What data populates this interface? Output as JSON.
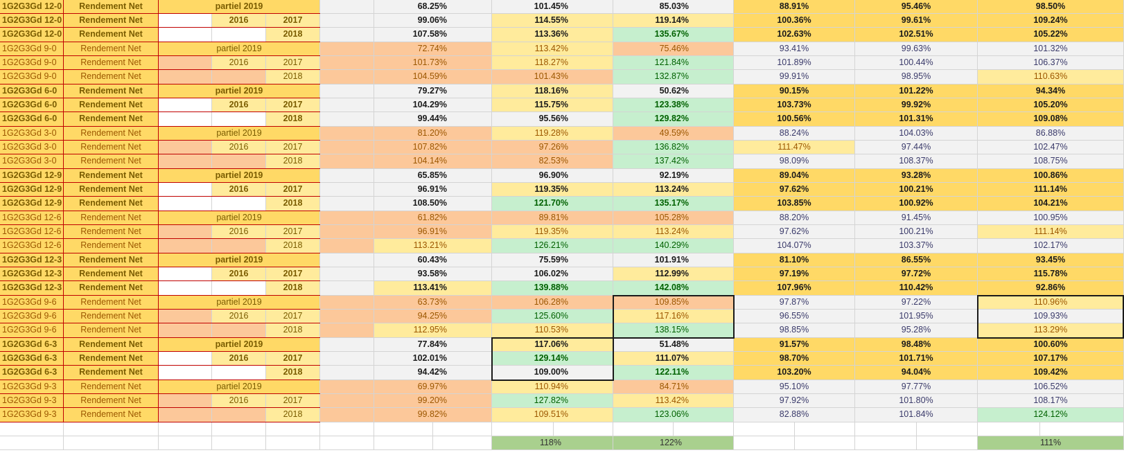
{
  "rows": [
    {
      "code": "1G2G3Gd 12-0",
      "label": "Rendement Net",
      "period": "partiel 2019",
      "y1": "",
      "y2": "",
      "vals": [
        "68.25%",
        "101.45%",
        "85.03%",
        "88.91%",
        "95.46%",
        "98.50%"
      ],
      "bg": [
        "gray",
        "gray",
        "gray",
        "gold",
        "gold",
        "gold"
      ],
      "emph": true
    },
    {
      "code": "1G2G3Gd 12-0",
      "label": "Rendement Net",
      "period": "",
      "y1": "2016",
      "y2": "2017",
      "vals": [
        "99.06%",
        "114.55%",
        "119.14%",
        "100.36%",
        "99.61%",
        "109.24%"
      ],
      "bg": [
        "gray",
        "pale",
        "pale",
        "gold",
        "gold",
        "gold"
      ],
      "emph": true
    },
    {
      "code": "1G2G3Gd 12-0",
      "label": "Rendement Net",
      "period": "",
      "y1": "",
      "y2": "2018",
      "vals": [
        "107.58%",
        "113.36%",
        "135.67%",
        "102.63%",
        "102.51%",
        "105.22%"
      ],
      "bg": [
        "gray",
        "pale",
        "green",
        "gold",
        "gold",
        "gold"
      ],
      "emph": true
    },
    {
      "code": "1G2G3Gd 9-0",
      "label": "Rendement Net",
      "period": "partiel 2019",
      "y1": "",
      "y2": "",
      "vals": [
        "72.74%",
        "113.42%",
        "75.46%",
        "93.41%",
        "99.63%",
        "101.32%"
      ],
      "bg": [
        "peach",
        "pale",
        "peach",
        "gray",
        "gray",
        "gray"
      ],
      "emph": false
    },
    {
      "code": "1G2G3Gd 9-0",
      "label": "Rendement Net",
      "period": "",
      "y1": "2016",
      "y2": "2017",
      "vals": [
        "101.73%",
        "118.27%",
        "121.84%",
        "101.89%",
        "100.44%",
        "106.37%"
      ],
      "bg": [
        "peach",
        "pale",
        "green",
        "gray",
        "gray",
        "gray"
      ],
      "emph": false
    },
    {
      "code": "1G2G3Gd 9-0",
      "label": "Rendement Net",
      "period": "",
      "y1": "",
      "y2": "2018",
      "vals": [
        "104.59%",
        "101.43%",
        "132.87%",
        "99.91%",
        "98.95%",
        "110.63%"
      ],
      "bg": [
        "peach",
        "peach",
        "green",
        "gray",
        "gray",
        "pale"
      ],
      "emph": false
    },
    {
      "code": "1G2G3Gd 6-0",
      "label": "Rendement Net",
      "period": "partiel 2019",
      "y1": "",
      "y2": "",
      "vals": [
        "79.27%",
        "118.16%",
        "50.62%",
        "90.15%",
        "101.22%",
        "94.34%"
      ],
      "bg": [
        "gray",
        "pale",
        "gray",
        "gold",
        "gold",
        "gold"
      ],
      "emph": true
    },
    {
      "code": "1G2G3Gd 6-0",
      "label": "Rendement Net",
      "period": "",
      "y1": "2016",
      "y2": "2017",
      "vals": [
        "104.29%",
        "115.75%",
        "123.38%",
        "103.73%",
        "99.92%",
        "105.20%"
      ],
      "bg": [
        "gray",
        "pale",
        "green",
        "gold",
        "gold",
        "gold"
      ],
      "emph": true
    },
    {
      "code": "1G2G3Gd 6-0",
      "label": "Rendement Net",
      "period": "",
      "y1": "",
      "y2": "2018",
      "vals": [
        "99.44%",
        "95.56%",
        "129.82%",
        "100.56%",
        "101.31%",
        "109.08%"
      ],
      "bg": [
        "gray",
        "gray",
        "green",
        "gold",
        "gold",
        "gold"
      ],
      "emph": true
    },
    {
      "code": "1G2G3Gd 3-0",
      "label": "Rendement Net",
      "period": "partiel 2019",
      "y1": "",
      "y2": "",
      "vals": [
        "81.20%",
        "119.28%",
        "49.59%",
        "88.24%",
        "104.03%",
        "86.88%"
      ],
      "bg": [
        "peach",
        "pale",
        "peach",
        "gray",
        "gray",
        "gray"
      ],
      "emph": false
    },
    {
      "code": "1G2G3Gd 3-0",
      "label": "Rendement Net",
      "period": "",
      "y1": "2016",
      "y2": "2017",
      "vals": [
        "107.82%",
        "97.26%",
        "136.82%",
        "111.47%",
        "97.44%",
        "102.47%"
      ],
      "bg": [
        "peach",
        "peach",
        "green",
        "pale",
        "gray",
        "gray"
      ],
      "emph": false
    },
    {
      "code": "1G2G3Gd 3-0",
      "label": "Rendement Net",
      "period": "",
      "y1": "",
      "y2": "2018",
      "vals": [
        "104.14%",
        "82.53%",
        "137.42%",
        "98.09%",
        "108.37%",
        "108.75%"
      ],
      "bg": [
        "peach",
        "peach",
        "green",
        "gray",
        "gray",
        "gray"
      ],
      "emph": false
    },
    {
      "code": "1G2G3Gd 12-9",
      "label": "Rendement Net",
      "period": "partiel 2019",
      "y1": "",
      "y2": "",
      "vals": [
        "65.85%",
        "96.90%",
        "92.19%",
        "89.04%",
        "93.28%",
        "100.86%"
      ],
      "bg": [
        "gray",
        "gray",
        "gray",
        "gold",
        "gold",
        "gold"
      ],
      "emph": true
    },
    {
      "code": "1G2G3Gd 12-9",
      "label": "Rendement Net",
      "period": "",
      "y1": "2016",
      "y2": "2017",
      "vals": [
        "96.91%",
        "119.35%",
        "113.24%",
        "97.62%",
        "100.21%",
        "111.14%"
      ],
      "bg": [
        "gray",
        "pale",
        "pale",
        "gold",
        "gold",
        "gold"
      ],
      "emph": true
    },
    {
      "code": "1G2G3Gd 12-9",
      "label": "Rendement Net",
      "period": "",
      "y1": "",
      "y2": "2018",
      "vals": [
        "108.50%",
        "121.70%",
        "135.17%",
        "103.85%",
        "100.92%",
        "104.21%"
      ],
      "bg": [
        "gray",
        "green",
        "green",
        "gold",
        "gold",
        "gold"
      ],
      "emph": true
    },
    {
      "code": "1G2G3Gd 12-6",
      "label": "Rendement Net",
      "period": "partiel 2019",
      "y1": "",
      "y2": "",
      "vals": [
        "61.82%",
        "89.81%",
        "105.28%",
        "88.20%",
        "91.45%",
        "100.95%"
      ],
      "bg": [
        "peach",
        "peach",
        "peach",
        "gray",
        "gray",
        "gray"
      ],
      "emph": false
    },
    {
      "code": "1G2G3Gd 12-6",
      "label": "Rendement Net",
      "period": "",
      "y1": "2016",
      "y2": "2017",
      "vals": [
        "96.91%",
        "119.35%",
        "113.24%",
        "97.62%",
        "100.21%",
        "111.14%"
      ],
      "bg": [
        "peach",
        "pale",
        "pale",
        "gray",
        "gray",
        "pale"
      ],
      "emph": false
    },
    {
      "code": "1G2G3Gd 12-6",
      "label": "Rendement Net",
      "period": "",
      "y1": "",
      "y2": "2018",
      "vals": [
        "113.21%",
        "126.21%",
        "140.29%",
        "104.07%",
        "103.37%",
        "102.17%"
      ],
      "bg": [
        "pale",
        "green",
        "green",
        "gray",
        "gray",
        "gray"
      ],
      "emph": false
    },
    {
      "code": "1G2G3Gd 12-3",
      "label": "Rendement Net",
      "period": "partiel 2019",
      "y1": "",
      "y2": "",
      "vals": [
        "60.43%",
        "75.59%",
        "101.91%",
        "81.10%",
        "86.55%",
        "93.45%"
      ],
      "bg": [
        "gray",
        "gray",
        "gray",
        "gold",
        "gold",
        "gold"
      ],
      "emph": true
    },
    {
      "code": "1G2G3Gd 12-3",
      "label": "Rendement Net",
      "period": "",
      "y1": "2016",
      "y2": "2017",
      "vals": [
        "93.58%",
        "106.02%",
        "112.99%",
        "97.19%",
        "97.72%",
        "115.78%"
      ],
      "bg": [
        "gray",
        "gray",
        "pale",
        "gold",
        "gold",
        "gold"
      ],
      "emph": true
    },
    {
      "code": "1G2G3Gd 12-3",
      "label": "Rendement Net",
      "period": "",
      "y1": "",
      "y2": "2018",
      "vals": [
        "113.41%",
        "139.88%",
        "142.08%",
        "107.96%",
        "110.42%",
        "92.86%"
      ],
      "bg": [
        "pale",
        "green",
        "green",
        "gold",
        "gold",
        "gold"
      ],
      "emph": true
    },
    {
      "code": "1G2G3Gd 9-6",
      "label": "Rendement Net",
      "period": "partiel 2019",
      "y1": "",
      "y2": "",
      "vals": [
        "63.73%",
        "106.28%",
        "109.85%",
        "97.87%",
        "97.22%",
        "110.96%"
      ],
      "bg": [
        "peach",
        "peach",
        "peach",
        "gray",
        "gray",
        "pale"
      ],
      "emph": false
    },
    {
      "code": "1G2G3Gd 9-6",
      "label": "Rendement Net",
      "period": "",
      "y1": "2016",
      "y2": "2017",
      "vals": [
        "94.25%",
        "125.60%",
        "117.16%",
        "96.55%",
        "101.95%",
        "109.93%"
      ],
      "bg": [
        "peach",
        "green",
        "pale",
        "gray",
        "gray",
        "gray"
      ],
      "emph": false
    },
    {
      "code": "1G2G3Gd 9-6",
      "label": "Rendement Net",
      "period": "",
      "y1": "",
      "y2": "2018",
      "vals": [
        "112.95%",
        "110.53%",
        "138.15%",
        "98.85%",
        "95.28%",
        "113.29%"
      ],
      "bg": [
        "pale",
        "pale",
        "green",
        "gray",
        "gray",
        "pale"
      ],
      "emph": false
    },
    {
      "code": "1G2G3Gd 6-3",
      "label": "Rendement Net",
      "period": "partiel 2019",
      "y1": "",
      "y2": "",
      "vals": [
        "77.84%",
        "117.06%",
        "51.48%",
        "91.57%",
        "98.48%",
        "100.60%"
      ],
      "bg": [
        "gray",
        "pale",
        "gray",
        "gold",
        "gold",
        "gold"
      ],
      "emph": true
    },
    {
      "code": "1G2G3Gd 6-3",
      "label": "Rendement Net",
      "period": "",
      "y1": "2016",
      "y2": "2017",
      "vals": [
        "102.01%",
        "129.14%",
        "111.07%",
        "98.70%",
        "101.71%",
        "107.17%"
      ],
      "bg": [
        "gray",
        "green",
        "pale",
        "gold",
        "gold",
        "gold"
      ],
      "emph": true
    },
    {
      "code": "1G2G3Gd 6-3",
      "label": "Rendement Net",
      "period": "",
      "y1": "",
      "y2": "2018",
      "vals": [
        "94.42%",
        "109.00%",
        "122.11%",
        "103.20%",
        "94.04%",
        "109.42%"
      ],
      "bg": [
        "gray",
        "gray",
        "green",
        "gold",
        "gold",
        "gold"
      ],
      "emph": true
    },
    {
      "code": "1G2G3Gd 9-3",
      "label": "Rendement Net",
      "period": "partiel 2019",
      "y1": "",
      "y2": "",
      "vals": [
        "69.97%",
        "110.94%",
        "84.71%",
        "95.10%",
        "97.77%",
        "106.52%"
      ],
      "bg": [
        "peach",
        "pale",
        "peach",
        "gray",
        "gray",
        "gray"
      ],
      "emph": false
    },
    {
      "code": "1G2G3Gd 9-3",
      "label": "Rendement Net",
      "period": "",
      "y1": "2016",
      "y2": "2017",
      "vals": [
        "99.20%",
        "127.82%",
        "113.42%",
        "97.92%",
        "101.80%",
        "108.17%"
      ],
      "bg": [
        "peach",
        "green",
        "pale",
        "gray",
        "gray",
        "gray"
      ],
      "emph": false
    },
    {
      "code": "1G2G3Gd 9-3",
      "label": "Rendement Net",
      "period": "",
      "y1": "",
      "y2": "2018",
      "vals": [
        "99.82%",
        "109.51%",
        "123.06%",
        "82.88%",
        "101.84%",
        "124.12%"
      ],
      "bg": [
        "peach",
        "pale",
        "green",
        "gray",
        "gray",
        "green"
      ],
      "emph": false
    }
  ],
  "totals": {
    "col2": "118%",
    "col3": "122%",
    "col6": "111%"
  },
  "colors": {
    "gold": "#ffd966",
    "peach": "#fcc89a",
    "gray": "#f2f2f2",
    "pale_yellow": "#ffeb9c",
    "green": "#c6efce",
    "total_green": "#a9d08e",
    "label_text": "#9c5700",
    "green_text": "#006100",
    "row_border": "#c00000"
  }
}
